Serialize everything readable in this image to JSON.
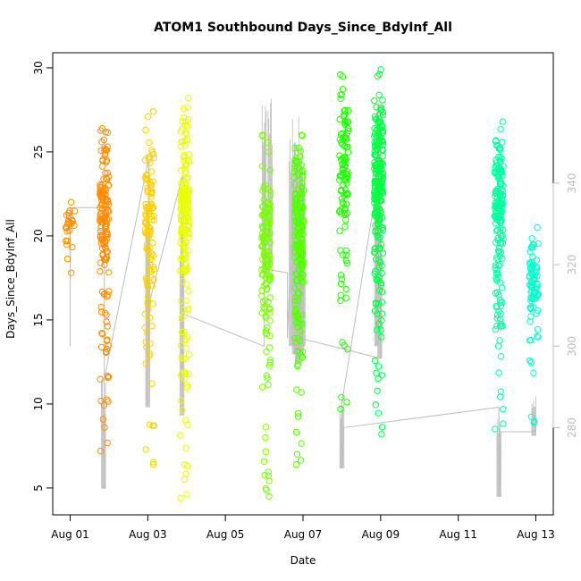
{
  "chart_data": {
    "type": "scatter",
    "title": "ATOM1 Southbound Days_Since_BdyInf_All",
    "xlabel": "Date",
    "ylabel": "Days_Since_BdyInf_All",
    "x_ticks": [
      "Aug 01",
      "Aug 03",
      "Aug 05",
      "Aug 07",
      "Aug 09",
      "Aug 11",
      "Aug 13"
    ],
    "x_tick_days": [
      1,
      3,
      5,
      7,
      9,
      11,
      13
    ],
    "xlim": [
      0.55,
      13.45
    ],
    "ylim": [
      3.4,
      30.9
    ],
    "y_ticks": [
      5,
      10,
      15,
      20,
      25,
      30
    ],
    "right_axis": {
      "ylim": [
        258.6,
        372.0
      ],
      "ticks": [
        280,
        300,
        320,
        340
      ],
      "color": "#bdbdbd"
    },
    "grid": false,
    "legend": "none",
    "point_style": "open-circle",
    "line_color": "#bdbdbd",
    "color_scale": [
      "#ff8c00",
      "#e8ff00",
      "#55ff00",
      "#00ff44",
      "#00ffcc"
    ],
    "clusters": [
      {
        "day": 1.0,
        "n": 25,
        "yMin": 17.8,
        "yMax": 22.0,
        "color": "#ff8c00"
      },
      {
        "day": 1.88,
        "n": 160,
        "yMin": 7.2,
        "yMax": 26.4,
        "color": "#ff8c00"
      },
      {
        "day": 3.05,
        "n": 120,
        "yMin": 6.4,
        "yMax": 27.4,
        "color": "#ffd000"
      },
      {
        "day": 3.95,
        "n": 200,
        "yMin": 4.4,
        "yMax": 28.2,
        "color": "#e8ff00"
      },
      {
        "day": 6.05,
        "n": 140,
        "yMin": 4.5,
        "yMax": 26.0,
        "color": "#77ff00"
      },
      {
        "day": 6.9,
        "n": 220,
        "yMin": 6.4,
        "yMax": 26.0,
        "color": "#55ff00"
      },
      {
        "day": 8.05,
        "n": 110,
        "yMin": 9.7,
        "yMax": 29.6,
        "color": "#22ff00"
      },
      {
        "day": 8.95,
        "n": 230,
        "yMin": 8.2,
        "yMax": 29.9,
        "color": "#00ff44"
      },
      {
        "day": 12.05,
        "n": 170,
        "yMin": 8.5,
        "yMax": 26.8,
        "color": "#00ffa0"
      },
      {
        "day": 12.95,
        "n": 80,
        "yMin": 8.9,
        "yMax": 20.5,
        "color": "#00ffcc"
      }
    ],
    "line_series": [
      {
        "day": 1.0,
        "value": 300.0
      },
      {
        "day": 1.0,
        "value": 334.0
      },
      {
        "day": 1.88,
        "value": 334.0
      },
      {
        "day": 1.88,
        "value": 265.0
      },
      {
        "day": 1.88,
        "value": 292.0
      },
      {
        "day": 3.02,
        "value": 346.0
      },
      {
        "day": 3.02,
        "value": 295.0
      },
      {
        "day": 3.02,
        "value": 310.0
      },
      {
        "day": 3.9,
        "value": 342.0
      },
      {
        "day": 3.9,
        "value": 290.0
      },
      {
        "day": 3.9,
        "value": 320.0
      },
      {
        "day": 3.9,
        "value": 308.0
      },
      {
        "day": 6.0,
        "value": 300.0
      },
      {
        "day": 6.0,
        "value": 352.0
      },
      {
        "day": 6.0,
        "value": 319.0
      },
      {
        "day": 6.6,
        "value": 318.0
      },
      {
        "day": 6.6,
        "value": 302.0
      },
      {
        "day": 6.8,
        "value": 350.0
      },
      {
        "day": 6.8,
        "value": 295.0
      },
      {
        "day": 6.9,
        "value": 302.0
      },
      {
        "day": 9.0,
        "value": 297.0
      },
      {
        "day": 9.0,
        "value": 345.0
      },
      {
        "day": 8.0,
        "value": 286.0
      },
      {
        "day": 8.0,
        "value": 270.0
      },
      {
        "day": 8.05,
        "value": 280.0
      },
      {
        "day": 12.05,
        "value": 285.0
      },
      {
        "day": 12.05,
        "value": 263.0
      },
      {
        "day": 12.1,
        "value": 279.0
      },
      {
        "day": 13.0,
        "value": 279.0
      },
      {
        "day": 13.0,
        "value": 283.0
      }
    ],
    "spikes": [
      {
        "day": 1.86,
        "lo": 265.0,
        "hi": 292.0
      },
      {
        "day": 3.0,
        "lo": 285.0,
        "hi": 346.0
      },
      {
        "day": 3.88,
        "lo": 283.0,
        "hi": 342.0
      },
      {
        "day": 6.0,
        "lo": 318.0,
        "hi": 366.0
      },
      {
        "day": 6.15,
        "lo": 320.0,
        "hi": 362.0
      },
      {
        "day": 6.7,
        "lo": 300.0,
        "hi": 351.0
      },
      {
        "day": 6.78,
        "lo": 298.0,
        "hi": 356.0
      },
      {
        "day": 6.88,
        "lo": 296.0,
        "hi": 360.0
      },
      {
        "day": 6.96,
        "lo": 298.0,
        "hi": 355.0
      },
      {
        "day": 7.0,
        "lo": 300.0,
        "hi": 352.0
      },
      {
        "day": 8.0,
        "lo": 270.0,
        "hi": 288.0
      },
      {
        "day": 8.9,
        "lo": 300.0,
        "hi": 362.0
      },
      {
        "day": 8.98,
        "lo": 297.0,
        "hi": 359.0
      },
      {
        "day": 12.05,
        "lo": 263.0,
        "hi": 285.0
      },
      {
        "day": 12.95,
        "lo": 278.0,
        "hi": 288.0
      }
    ]
  }
}
